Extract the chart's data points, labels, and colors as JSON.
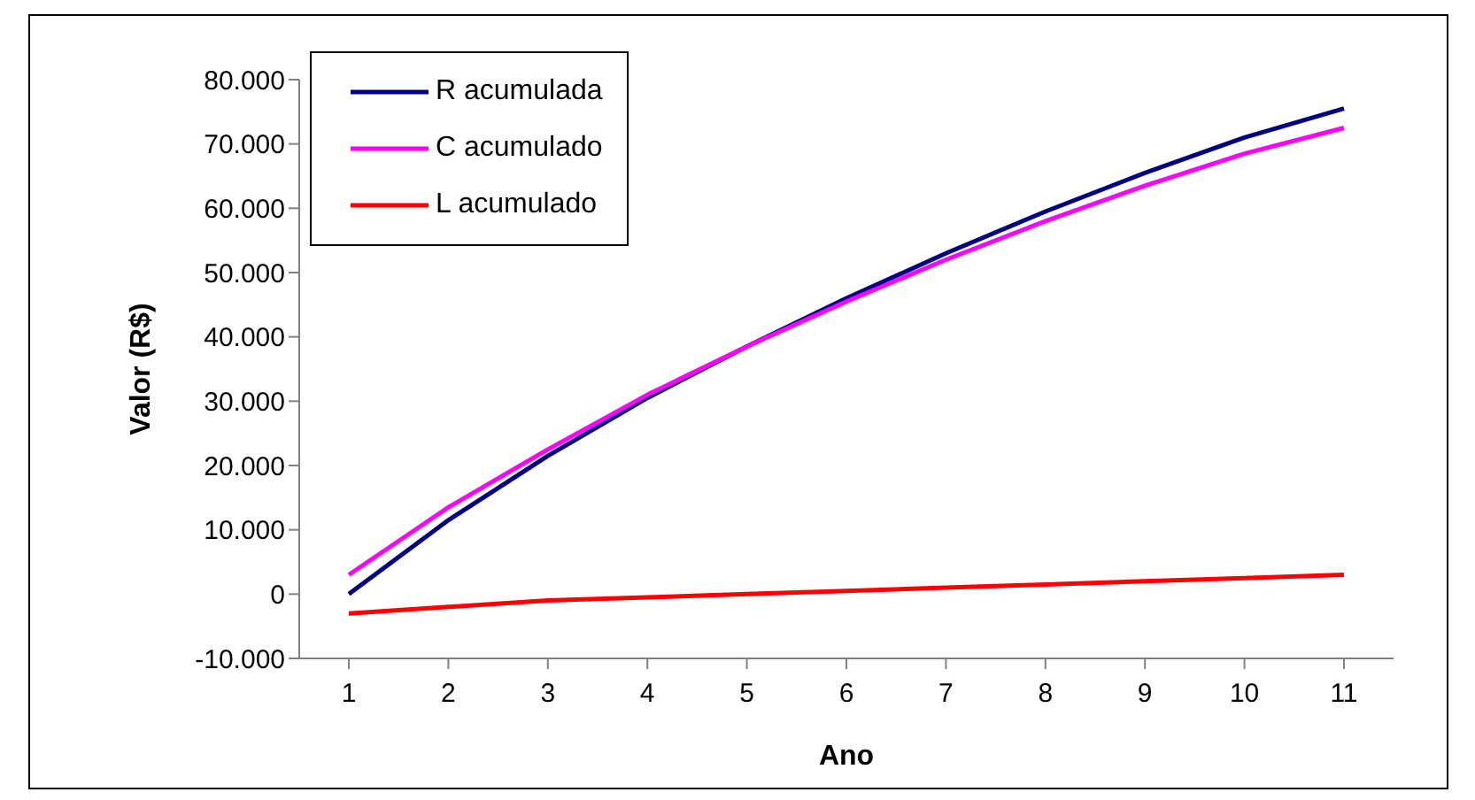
{
  "chart_data": {
    "type": "line",
    "xlabel": "Ano",
    "ylabel": "Valor (R$)",
    "categories": [
      "1",
      "2",
      "3",
      "4",
      "5",
      "6",
      "7",
      "8",
      "9",
      "10",
      "11"
    ],
    "series": [
      {
        "name": "R acumulada",
        "color": "#000080",
        "values": [
          0,
          11500,
          21500,
          30500,
          38500,
          46000,
          53000,
          59500,
          65500,
          71000,
          75500
        ]
      },
      {
        "name": "C acumulado",
        "color": "#ff00ff",
        "values": [
          3000,
          13500,
          22500,
          31000,
          38500,
          45500,
          52000,
          58000,
          63500,
          68500,
          72500
        ]
      },
      {
        "name": "L acumulado",
        "color": "#ff0000",
        "values": [
          -3000,
          -2000,
          -1000,
          -500,
          0,
          500,
          1000,
          1500,
          2000,
          2500,
          3000
        ]
      }
    ],
    "ylim": [
      -10000,
      80000
    ],
    "yticks": [
      {
        "value": -10000,
        "label": "-10.000"
      },
      {
        "value": 0,
        "label": "0"
      },
      {
        "value": 10000,
        "label": "10.000"
      },
      {
        "value": 20000,
        "label": "20.000"
      },
      {
        "value": 30000,
        "label": "30.000"
      },
      {
        "value": 40000,
        "label": "40.000"
      },
      {
        "value": 50000,
        "label": "50.000"
      },
      {
        "value": 60000,
        "label": "60.000"
      },
      {
        "value": 70000,
        "label": "70.000"
      },
      {
        "value": 80000,
        "label": "80.000"
      }
    ],
    "grid": false,
    "legend": "top left",
    "marker": "none",
    "line_style": "solid"
  }
}
